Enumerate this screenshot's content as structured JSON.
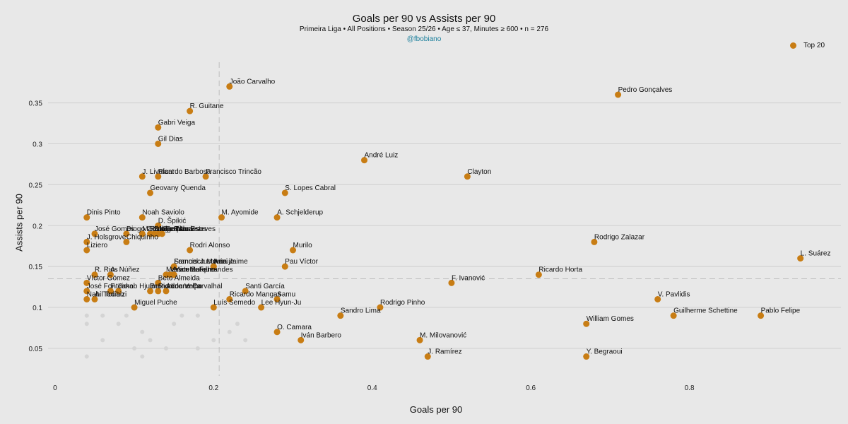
{
  "chart_data": {
    "type": "scatter",
    "title": "Goals per 90 vs Assists per 90",
    "subtitle": "Primeira Liga  •  All Positions  •  Season 25/26  •  Age ≤ 37, Minutes ≥ 600  •  n = 276",
    "handle": "@fbobiano",
    "xlabel": "Goals per 90",
    "ylabel": "Assists per 90",
    "xlim": [
      -0.04,
      1.0
    ],
    "ylim": [
      0.018,
      0.398
    ],
    "x_ticks": [
      0,
      0.2,
      0.4,
      0.6,
      0.8
    ],
    "x_tick_labels": [
      "0",
      "0.2",
      "0.4",
      "0.6",
      "0.8"
    ],
    "y_ticks": [
      0.05,
      0.1,
      0.15,
      0.2,
      0.25,
      0.3,
      0.35
    ],
    "y_tick_labels": [
      "0.05",
      "0.1",
      "0.15",
      "0.2",
      "0.25",
      "0.3",
      "0.35"
    ],
    "reference_lines": {
      "x_median": 0.207,
      "y_median": 0.135
    },
    "legend": {
      "label": "Top 20",
      "color": "#c87d14",
      "placement": "top-right"
    },
    "highlight_color": "#c87d14",
    "background_points_color": "#d4d4d4",
    "background_points": [
      {
        "x": 0.04,
        "y": 0.09
      },
      {
        "x": 0.04,
        "y": 0.08
      },
      {
        "x": 0.04,
        "y": 0.04
      },
      {
        "x": 0.06,
        "y": 0.09
      },
      {
        "x": 0.06,
        "y": 0.06
      },
      {
        "x": 0.08,
        "y": 0.08
      },
      {
        "x": 0.09,
        "y": 0.09
      },
      {
        "x": 0.1,
        "y": 0.05
      },
      {
        "x": 0.11,
        "y": 0.07
      },
      {
        "x": 0.11,
        "y": 0.04
      },
      {
        "x": 0.12,
        "y": 0.06
      },
      {
        "x": 0.14,
        "y": 0.05
      },
      {
        "x": 0.15,
        "y": 0.08
      },
      {
        "x": 0.16,
        "y": 0.09
      },
      {
        "x": 0.18,
        "y": 0.05
      },
      {
        "x": 0.18,
        "y": 0.09
      },
      {
        "x": 0.22,
        "y": 0.07
      },
      {
        "x": 0.23,
        "y": 0.08
      },
      {
        "x": 0.24,
        "y": 0.06
      },
      {
        "x": 0.2,
        "y": 0.06
      }
    ],
    "points": [
      {
        "name": "João Carvalho",
        "x": 0.22,
        "y": 0.37
      },
      {
        "name": "Pedro Gonçalves",
        "x": 0.71,
        "y": 0.36
      },
      {
        "name": "R. Guitane",
        "x": 0.17,
        "y": 0.34
      },
      {
        "name": "Gabri Veiga",
        "x": 0.13,
        "y": 0.32
      },
      {
        "name": "Gil Dias",
        "x": 0.13,
        "y": 0.3
      },
      {
        "name": "André Luiz",
        "x": 0.39,
        "y": 0.28
      },
      {
        "name": "Clayton",
        "x": 0.52,
        "y": 0.26
      },
      {
        "name": "J. Livolant",
        "x": 0.11,
        "y": 0.26
      },
      {
        "name": "Ricardo Barbosa",
        "x": 0.13,
        "y": 0.26
      },
      {
        "name": "Francisco Trincão",
        "x": 0.19,
        "y": 0.26
      },
      {
        "name": "Geovany Quenda",
        "x": 0.12,
        "y": 0.24
      },
      {
        "name": "S. Lopes Cabral",
        "x": 0.29,
        "y": 0.24
      },
      {
        "name": "Dinis Pinto",
        "x": 0.04,
        "y": 0.21
      },
      {
        "name": "Noah Saviolo",
        "x": 0.11,
        "y": 0.21
      },
      {
        "name": "M. Ayomide",
        "x": 0.21,
        "y": 0.21
      },
      {
        "name": "A. Schjelderup",
        "x": 0.28,
        "y": 0.21
      },
      {
        "name": "D. Špikić",
        "x": 0.13,
        "y": 0.2
      },
      {
        "name": "José Gomes",
        "x": 0.05,
        "y": 0.19
      },
      {
        "name": "Diogo Costa",
        "x": 0.09,
        "y": 0.19
      },
      {
        "name": "Martim Fernandes",
        "x": 0.11,
        "y": 0.19
      },
      {
        "name": "Rodrigo Mora",
        "x": 0.12,
        "y": 0.19
      },
      {
        "name": "Diogo Travassos",
        "x": 0.125,
        "y": 0.19
      },
      {
        "name": "Jota Silva",
        "x": 0.13,
        "y": 0.19
      },
      {
        "name": "Gonçalo Esteves",
        "x": 0.135,
        "y": 0.19
      },
      {
        "name": "Rodrigo Zalazar",
        "x": 0.68,
        "y": 0.18
      },
      {
        "name": "J. Holsgrove",
        "x": 0.04,
        "y": 0.18
      },
      {
        "name": "Chiquinho",
        "x": 0.09,
        "y": 0.18
      },
      {
        "name": "Liziero",
        "x": 0.04,
        "y": 0.17
      },
      {
        "name": "Rodri Alonso",
        "x": 0.17,
        "y": 0.17
      },
      {
        "name": "Murilo",
        "x": 0.3,
        "y": 0.17
      },
      {
        "name": "L. Suárez",
        "x": 0.94,
        "y": 0.16
      },
      {
        "name": "Francisco Moura",
        "x": 0.15,
        "y": 0.15
      },
      {
        "name": "Samuel Justo",
        "x": 0.15,
        "y": 0.15
      },
      {
        "name": "Iván Jaime",
        "x": 0.2,
        "y": 0.15
      },
      {
        "name": "Araújo",
        "x": 0.2,
        "y": 0.15
      },
      {
        "name": "Pau Víctor",
        "x": 0.29,
        "y": 0.15
      },
      {
        "name": "R. Rios",
        "x": 0.05,
        "y": 0.14
      },
      {
        "name": "A. Núñez",
        "x": 0.07,
        "y": 0.14
      },
      {
        "name": "Martim Marques",
        "x": 0.14,
        "y": 0.14
      },
      {
        "name": "Vasco Botelho",
        "x": 0.145,
        "y": 0.14
      },
      {
        "name": "Mateus Fernandes",
        "x": 0.15,
        "y": 0.14
      },
      {
        "name": "Ricardo Horta",
        "x": 0.61,
        "y": 0.14
      },
      {
        "name": "Víctor Gómez",
        "x": 0.04,
        "y": 0.13
      },
      {
        "name": "Beto Almeida",
        "x": 0.13,
        "y": 0.13
      },
      {
        "name": "F. Ivanović",
        "x": 0.5,
        "y": 0.13
      },
      {
        "name": "José Fonte",
        "x": 0.04,
        "y": 0.12
      },
      {
        "name": "F. Lima",
        "x": 0.07,
        "y": 0.12
      },
      {
        "name": "Jakob Hjulmand",
        "x": 0.08,
        "y": 0.12
      },
      {
        "name": "Bruno Lourenço",
        "x": 0.12,
        "y": 0.12
      },
      {
        "name": "Ricardo Velho",
        "x": 0.13,
        "y": 0.12
      },
      {
        "name": "Adriano Carvalhal",
        "x": 0.14,
        "y": 0.12
      },
      {
        "name": "Santi García",
        "x": 0.24,
        "y": 0.12
      },
      {
        "name": "Nabil Touaizi",
        "x": 0.04,
        "y": 0.11
      },
      {
        "name": "A. Todibo",
        "x": 0.05,
        "y": 0.11
      },
      {
        "name": "Ricardo Mangas",
        "x": 0.22,
        "y": 0.11
      },
      {
        "name": "Samu",
        "x": 0.28,
        "y": 0.11
      },
      {
        "name": "V. Pavlidis",
        "x": 0.76,
        "y": 0.11
      },
      {
        "name": "Miguel Puche",
        "x": 0.1,
        "y": 0.1
      },
      {
        "name": "Luís Semedo",
        "x": 0.2,
        "y": 0.1
      },
      {
        "name": "Lee Hyun-Ju",
        "x": 0.26,
        "y": 0.1
      },
      {
        "name": "Rodrigo Pinho",
        "x": 0.41,
        "y": 0.1
      },
      {
        "name": "Sandro Lima",
        "x": 0.36,
        "y": 0.09
      },
      {
        "name": "Guilherme Schettine",
        "x": 0.78,
        "y": 0.09
      },
      {
        "name": "Pablo Felipe",
        "x": 0.89,
        "y": 0.09
      },
      {
        "name": "William Gomes",
        "x": 0.67,
        "y": 0.08
      },
      {
        "name": "O. Camara",
        "x": 0.28,
        "y": 0.07
      },
      {
        "name": "Iván Barbero",
        "x": 0.31,
        "y": 0.06
      },
      {
        "name": "M. Milovanović",
        "x": 0.46,
        "y": 0.06
      },
      {
        "name": "J. Ramírez",
        "x": 0.47,
        "y": 0.04
      },
      {
        "name": "Y. Begraoui",
        "x": 0.67,
        "y": 0.04
      }
    ]
  }
}
